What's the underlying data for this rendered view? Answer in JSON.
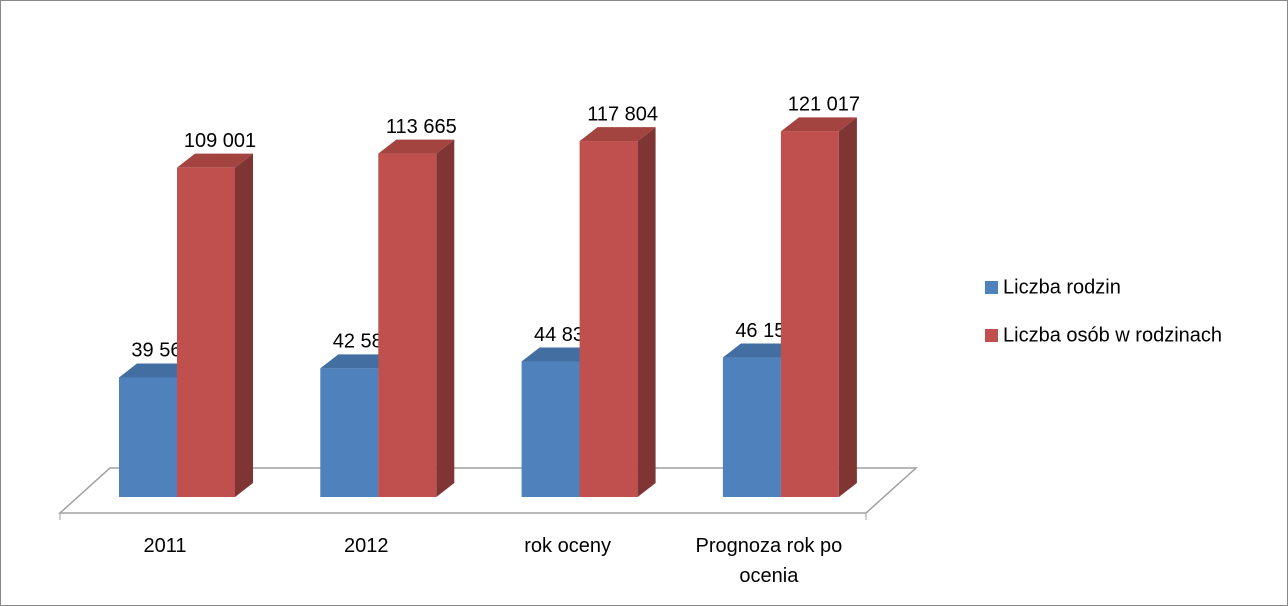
{
  "chart_data": {
    "type": "bar3d",
    "categories": [
      "2011",
      "2012",
      "rok oceny",
      "Prognoza rok po ocenia"
    ],
    "series": [
      {
        "name": "Liczba rodzin",
        "color": "#4f81bd",
        "values": [
          39567,
          42586,
          44837,
          46150
        ],
        "value_labels": [
          "39 567",
          "42 586",
          "44 837",
          "46 150"
        ]
      },
      {
        "name": "Liczba osób w rodzinach",
        "color": "#c0504d",
        "values": [
          109001,
          113665,
          117804,
          121017
        ],
        "value_labels": [
          "109 001",
          "113 665",
          "117 804",
          "121 017"
        ]
      }
    ],
    "ylim": [
      0,
      140000
    ],
    "legend": "right"
  }
}
